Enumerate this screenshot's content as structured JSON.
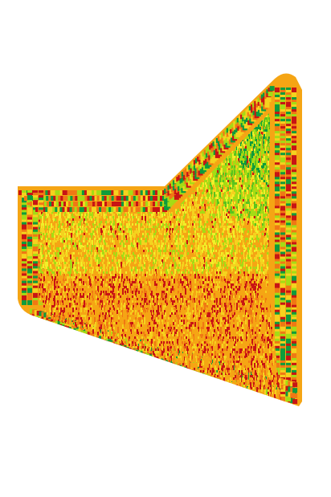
{
  "field_map": {
    "legend_colors": {
      "very_low": "#c81414",
      "low": "#f07814",
      "mid_low": "#f5a514",
      "mid": "#f5d21e",
      "mid_high": "#f0f028",
      "high": "#a5dc14",
      "higher": "#5ac31e",
      "very_high": "#0f9b3c"
    },
    "headland_colors": [
      "#c81414",
      "#f07814",
      "#f5d21e",
      "#a5dc14",
      "#0f9b3c"
    ]
  }
}
